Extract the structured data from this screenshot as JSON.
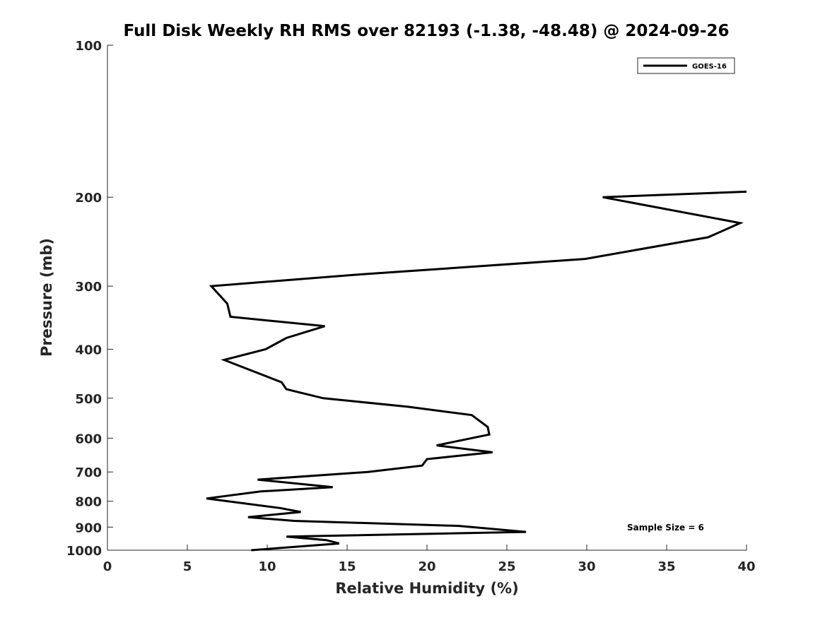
{
  "chart_data": {
    "type": "line",
    "title": "Full Disk Weekly RH RMS over 82193 (-1.38, -48.48) @ 2024-09-26",
    "xlabel": "Relative Humidity (%)",
    "ylabel": "Pressure (mb)",
    "xlim": [
      0,
      40
    ],
    "ylim": [
      100,
      1000
    ],
    "y_scale": "log",
    "y_reversed": true,
    "x_ticks": [
      "0",
      "5",
      "10",
      "15",
      "20",
      "25",
      "30",
      "35",
      "40"
    ],
    "y_ticks": [
      "100",
      "200",
      "300",
      "400",
      "500",
      "600",
      "700",
      "800",
      "900",
      "1000"
    ],
    "grid": false,
    "legend_position": "top-right",
    "annotation": "Sample Size = 6",
    "series": [
      {
        "name": "GOES-16",
        "color": "#000000",
        "points": [
          {
            "x": 40.0,
            "y": 195
          },
          {
            "x": 31.0,
            "y": 200
          },
          {
            "x": 39.6,
            "y": 225
          },
          {
            "x": 37.6,
            "y": 240
          },
          {
            "x": 29.9,
            "y": 265
          },
          {
            "x": 15.4,
            "y": 285
          },
          {
            "x": 6.5,
            "y": 300
          },
          {
            "x": 7.5,
            "y": 325
          },
          {
            "x": 7.7,
            "y": 345
          },
          {
            "x": 13.6,
            "y": 360
          },
          {
            "x": 11.2,
            "y": 380
          },
          {
            "x": 9.9,
            "y": 400
          },
          {
            "x": 7.3,
            "y": 420
          },
          {
            "x": 10.9,
            "y": 465
          },
          {
            "x": 11.2,
            "y": 480
          },
          {
            "x": 13.5,
            "y": 500
          },
          {
            "x": 18.8,
            "y": 520
          },
          {
            "x": 22.8,
            "y": 540
          },
          {
            "x": 23.8,
            "y": 570
          },
          {
            "x": 23.9,
            "y": 590
          },
          {
            "x": 20.6,
            "y": 620
          },
          {
            "x": 24.1,
            "y": 640
          },
          {
            "x": 20.0,
            "y": 660
          },
          {
            "x": 19.7,
            "y": 680
          },
          {
            "x": 16.3,
            "y": 700
          },
          {
            "x": 9.4,
            "y": 725
          },
          {
            "x": 14.1,
            "y": 750
          },
          {
            "x": 9.6,
            "y": 765
          },
          {
            "x": 6.2,
            "y": 790
          },
          {
            "x": 10.8,
            "y": 825
          },
          {
            "x": 12.1,
            "y": 840
          },
          {
            "x": 8.8,
            "y": 860
          },
          {
            "x": 11.7,
            "y": 875
          },
          {
            "x": 22.0,
            "y": 895
          },
          {
            "x": 26.2,
            "y": 920
          },
          {
            "x": 11.2,
            "y": 940
          },
          {
            "x": 13.7,
            "y": 955
          },
          {
            "x": 14.5,
            "y": 970
          },
          {
            "x": 9.0,
            "y": 1000
          }
        ]
      }
    ]
  }
}
